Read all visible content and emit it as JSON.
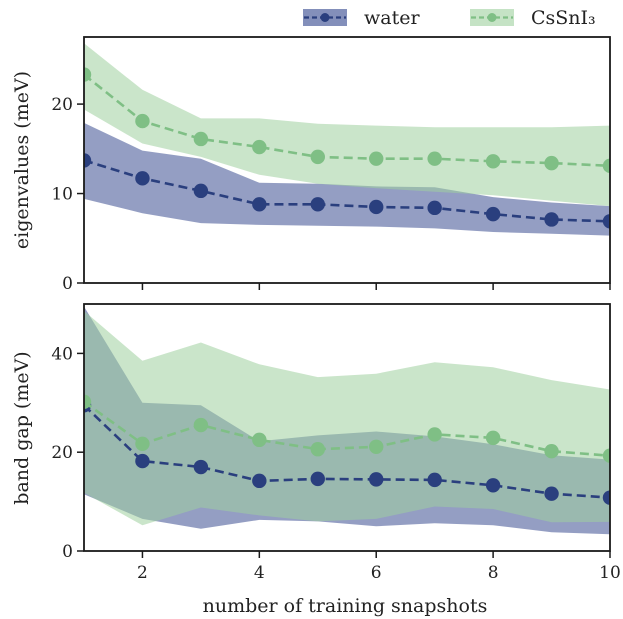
{
  "chart_data": [
    {
      "type": "line",
      "panel": "top",
      "x": [
        1,
        2,
        3,
        4,
        5,
        6,
        7,
        8,
        9,
        10
      ],
      "xlim": [
        1,
        10
      ],
      "ylim": [
        0,
        27.5
      ],
      "yticks": [
        0,
        10,
        20
      ],
      "ylabel": "eigenvalues   (meV)",
      "series": [
        {
          "name": "water",
          "color": "#2a3f7e",
          "band_color": "#5a6aa3",
          "values": [
            13.7,
            11.7,
            10.3,
            8.8,
            8.8,
            8.5,
            8.4,
            7.7,
            7.1,
            6.9
          ],
          "upper": [
            17.9,
            14.8,
            13.9,
            11.2,
            11.1,
            10.8,
            10.7,
            9.6,
            9.0,
            8.6
          ],
          "lower": [
            9.4,
            7.8,
            6.7,
            6.5,
            6.4,
            6.3,
            6.1,
            5.7,
            5.5,
            5.3
          ]
        },
        {
          "name": "CsSnI₃",
          "color": "#7fbf85",
          "band_color": "#9fd09f",
          "values": [
            23.3,
            18.1,
            16.1,
            15.2,
            14.1,
            13.9,
            13.9,
            13.6,
            13.4,
            13.1
          ],
          "upper": [
            26.8,
            21.6,
            18.4,
            18.4,
            17.8,
            17.6,
            17.4,
            17.4,
            17.4,
            17.6
          ],
          "lower": [
            19.4,
            15.6,
            14.1,
            12.1,
            11.1,
            10.6,
            10.2,
            9.8,
            9.2,
            8.6
          ]
        }
      ]
    },
    {
      "type": "line",
      "panel": "bottom",
      "x": [
        1,
        2,
        3,
        4,
        5,
        6,
        7,
        8,
        9,
        10
      ],
      "xlim": [
        1,
        10
      ],
      "ylim": [
        0,
        50
      ],
      "yticks": [
        0,
        20,
        40
      ],
      "xticks": [
        2,
        4,
        6,
        8,
        10
      ],
      "ylabel": "band gap   (meV)",
      "xlabel": "number of training snapshots",
      "series": [
        {
          "name": "water",
          "color": "#2a3f7e",
          "band_color": "#5a6aa3",
          "values": [
            29.5,
            18.2,
            17.0,
            14.2,
            14.6,
            14.5,
            14.4,
            13.3,
            11.6,
            10.8
          ],
          "upper": [
            49.5,
            30.0,
            29.5,
            22.2,
            23.4,
            24.2,
            23.2,
            21.6,
            19.4,
            18.5
          ],
          "lower": [
            11.5,
            6.5,
            4.5,
            6.3,
            6.0,
            5.0,
            5.6,
            5.2,
            3.8,
            3.4
          ]
        },
        {
          "name": "CsSnI₃",
          "color": "#7fbf85",
          "band_color": "#9fd09f",
          "values": [
            30.2,
            21.7,
            25.5,
            22.5,
            20.6,
            21.1,
            23.6,
            22.9,
            20.2,
            19.3
          ],
          "upper": [
            48.6,
            38.5,
            42.2,
            37.8,
            35.2,
            35.9,
            38.2,
            37.2,
            34.6,
            32.7
          ],
          "lower": [
            11.8,
            5.2,
            8.8,
            7.2,
            6.0,
            6.5,
            9.0,
            8.5,
            5.8,
            5.9
          ]
        }
      ]
    }
  ],
  "legend": {
    "placement": "top-right",
    "entries": [
      "water",
      "CsSnI₃"
    ]
  }
}
